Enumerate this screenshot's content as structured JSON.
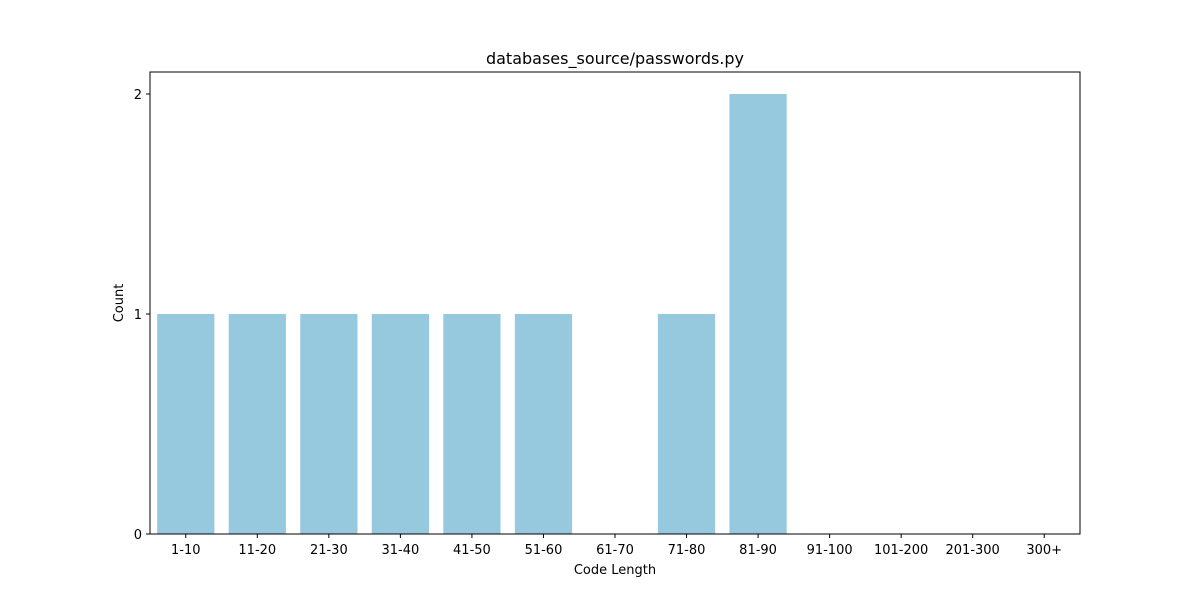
{
  "chart_data": {
    "type": "bar",
    "title": "databases_source/passwords.py",
    "xlabel": "Code Length",
    "ylabel": "Count",
    "categories": [
      "1-10",
      "11-20",
      "21-30",
      "31-40",
      "41-50",
      "51-60",
      "61-70",
      "71-80",
      "81-90",
      "91-100",
      "101-200",
      "201-300",
      "300+"
    ],
    "values": [
      1,
      1,
      1,
      1,
      1,
      1,
      0,
      1,
      2,
      0,
      0,
      0,
      0
    ],
    "ylim": [
      0,
      2.1
    ],
    "yticks": [
      0,
      1,
      2
    ],
    "grid": false,
    "legend": "none",
    "bar_color": "#96c9de"
  }
}
